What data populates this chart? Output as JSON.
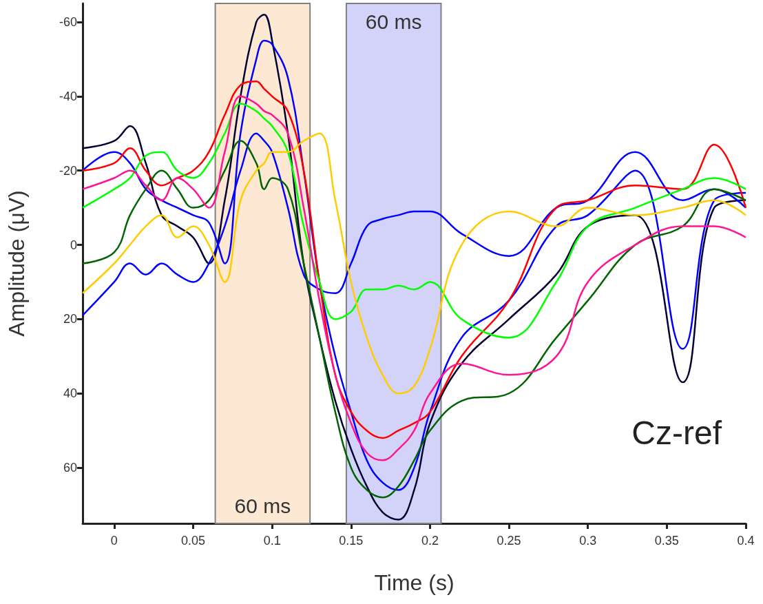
{
  "chart_data": {
    "type": "line",
    "xlabel": "Time (s)",
    "ylabel": "Amplitude (μV)",
    "x": [
      -0.02,
      0,
      0.01,
      0.02,
      0.03,
      0.04,
      0.05,
      0.06,
      0.07,
      0.08,
      0.09,
      0.095,
      0.1,
      0.11,
      0.12,
      0.13,
      0.14,
      0.15,
      0.16,
      0.17,
      0.18,
      0.19,
      0.2,
      0.22,
      0.25,
      0.28,
      0.3,
      0.33,
      0.36,
      0.38,
      0.4
    ],
    "series": [
      {
        "color": "#000033",
        "values": [
          -26,
          -28,
          -32,
          -22,
          -8,
          -5,
          -2,
          5,
          -12,
          -40,
          -60,
          -62,
          -55,
          -30,
          5,
          25,
          42,
          55,
          65,
          72,
          74,
          66,
          48,
          32,
          20,
          8,
          -5,
          -8,
          37,
          -10,
          -12
        ]
      },
      {
        "color": "#0000ff",
        "values": [
          -20,
          -25,
          -22,
          -15,
          -12,
          -10,
          -8,
          -6,
          5,
          -30,
          -50,
          -55,
          -54,
          -45,
          -20,
          10,
          30,
          45,
          58,
          64,
          66,
          60,
          45,
          25,
          15,
          -5,
          -8,
          -20,
          28,
          -12,
          -14
        ]
      },
      {
        "color": "#0000ff",
        "values": [
          19,
          10,
          5,
          8,
          5,
          8,
          10,
          5,
          -5,
          -20,
          -30,
          -28,
          -25,
          -10,
          8,
          12,
          13,
          5,
          -5,
          -7,
          -8,
          -9,
          -9,
          -3,
          3,
          -10,
          -12,
          -25,
          -12,
          -15,
          -10
        ]
      },
      {
        "color": "#ff0000",
        "values": [
          -20,
          -22,
          -26,
          -20,
          -16,
          -18,
          -20,
          -25,
          -35,
          -43,
          -44,
          -42,
          -40,
          -36,
          -20,
          10,
          35,
          45,
          50,
          52,
          50,
          48,
          45,
          30,
          15,
          -10,
          -12,
          -16,
          -15,
          -27,
          -10
        ]
      },
      {
        "color": "#00ff00",
        "values": [
          -10,
          -15,
          -18,
          -24,
          -25,
          -20,
          -18,
          -22,
          -30,
          -38,
          -36,
          -34,
          -32,
          -25,
          -5,
          10,
          20,
          18,
          12,
          12,
          11,
          12,
          10,
          20,
          25,
          10,
          -5,
          -10,
          -15,
          -18,
          -15
        ]
      },
      {
        "color": "#006400",
        "values": [
          5,
          2,
          -8,
          -15,
          -20,
          -15,
          -10,
          -12,
          -20,
          -28,
          -22,
          -15,
          -18,
          -15,
          5,
          25,
          45,
          60,
          66,
          68,
          65,
          58,
          50,
          42,
          40,
          25,
          15,
          0,
          -5,
          -15,
          -12
        ]
      },
      {
        "color": "#ff1493",
        "values": [
          -15,
          -18,
          -20,
          -16,
          -12,
          -18,
          -15,
          -10,
          -25,
          -40,
          -38,
          -36,
          -35,
          -30,
          -10,
          15,
          35,
          48,
          56,
          58,
          55,
          50,
          40,
          32,
          35,
          30,
          10,
          0,
          -5,
          -5,
          -2
        ]
      },
      {
        "color": "#ffcc00",
        "values": [
          13,
          5,
          0,
          -5,
          -8,
          -2,
          -5,
          0,
          10,
          -12,
          -20,
          -22,
          -25,
          -25,
          -28,
          -30,
          -12,
          10,
          25,
          35,
          40,
          38,
          28,
          0,
          -9,
          -5,
          -10,
          -8,
          -10,
          -12,
          -8
        ]
      }
    ],
    "xlim": [
      -0.02,
      0.4
    ],
    "xticks": [
      0,
      0.05,
      0.1,
      0.15,
      0.2,
      0.25,
      0.3,
      0.35,
      0.4
    ],
    "ylim": [
      75,
      -65
    ],
    "yticks": [
      -60,
      -40,
      -20,
      0,
      20,
      40,
      60
    ],
    "bands": [
      {
        "axis": "x",
        "from": 0.064,
        "to": 0.124,
        "label": "60 ms",
        "color": "#fde8d4"
      },
      {
        "axis": "x",
        "from": 0.147,
        "to": 0.207,
        "label": "60 ms",
        "color": "#d3d3fa"
      }
    ],
    "annotations": [
      "Cz-ref"
    ],
    "line_style": "solid",
    "marker": "none",
    "grid": false
  }
}
